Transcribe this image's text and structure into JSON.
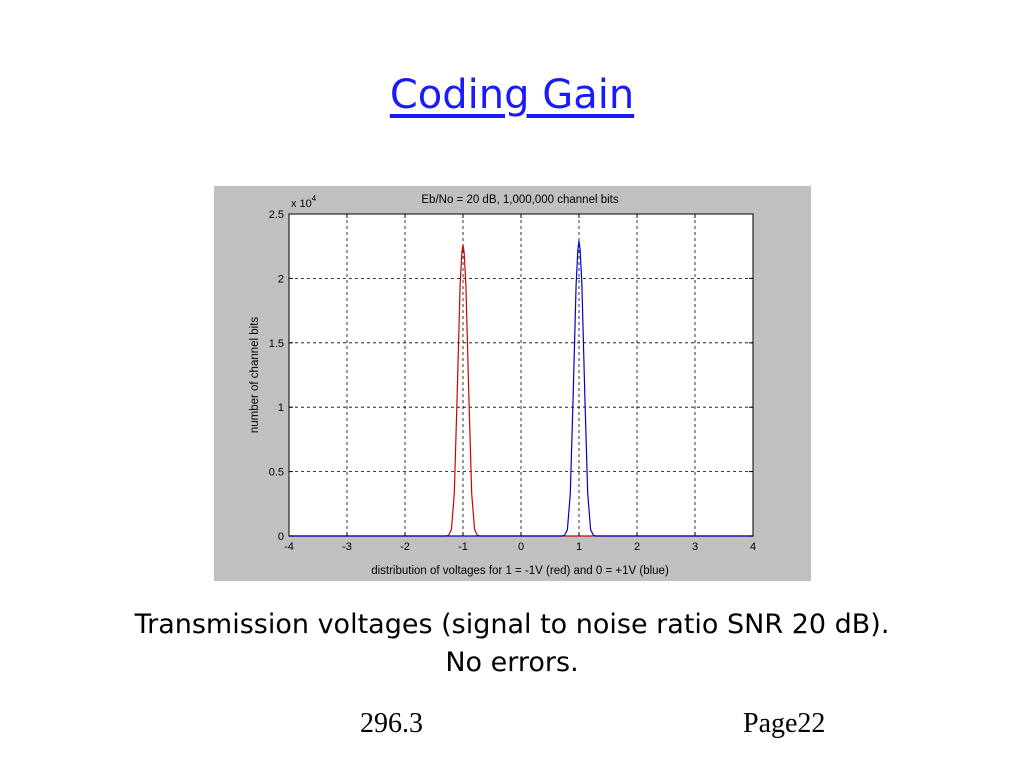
{
  "slide": {
    "title": "Coding Gain",
    "caption_line1": "Transmission voltages (signal to noise ratio SNR 20 dB).",
    "caption_line2": "No errors.",
    "footer_left": "296.3",
    "footer_right": "Page22"
  },
  "chart_data": {
    "type": "line",
    "title": "Eb/No = 20 dB, 1,000,000 channel bits",
    "xlabel": "distribution of voltages for 1 = -1V (red) and 0 = +1V (blue)",
    "ylabel": "number of channel bits",
    "y_multiplier": "x 10",
    "y_multiplier_exp": "4",
    "xlim": [
      -4,
      4
    ],
    "ylim": [
      0,
      2.5
    ],
    "xticks": [
      -4,
      -3,
      -2,
      -1,
      0,
      1,
      2,
      3,
      4
    ],
    "xtick_labels": [
      "-4",
      "-3",
      "-2",
      "-1",
      "0",
      "1",
      "2",
      "3",
      "4"
    ],
    "yticks": [
      0,
      0.5,
      1,
      1.5,
      2,
      2.5
    ],
    "ytick_labels": [
      "0",
      "0.5",
      "1",
      "1.5",
      "2",
      "2.5"
    ],
    "grid": true,
    "series": [
      {
        "color": "#d00000",
        "x": [
          -4,
          -1.3,
          -1.25,
          -1.2,
          -1.15,
          -1.1,
          -1.05,
          -1.02,
          -1.0,
          -0.98,
          -0.95,
          -0.9,
          -0.85,
          -0.8,
          -0.75,
          -0.7,
          4
        ],
        "y": [
          0,
          0,
          0.004,
          0.05,
          0.33,
          1.1,
          1.95,
          2.2,
          2.26,
          2.2,
          1.95,
          1.1,
          0.33,
          0.05,
          0.004,
          0,
          0
        ]
      },
      {
        "color": "#0000d0",
        "x": [
          -4,
          0.7,
          0.75,
          0.8,
          0.85,
          0.9,
          0.95,
          0.98,
          1.0,
          1.02,
          1.05,
          1.1,
          1.15,
          1.2,
          1.25,
          1.3,
          4
        ],
        "y": [
          0,
          0,
          0.004,
          0.05,
          0.33,
          1.1,
          1.95,
          2.22,
          2.29,
          2.22,
          1.95,
          1.1,
          0.33,
          0.05,
          0.004,
          0,
          0
        ]
      }
    ]
  }
}
